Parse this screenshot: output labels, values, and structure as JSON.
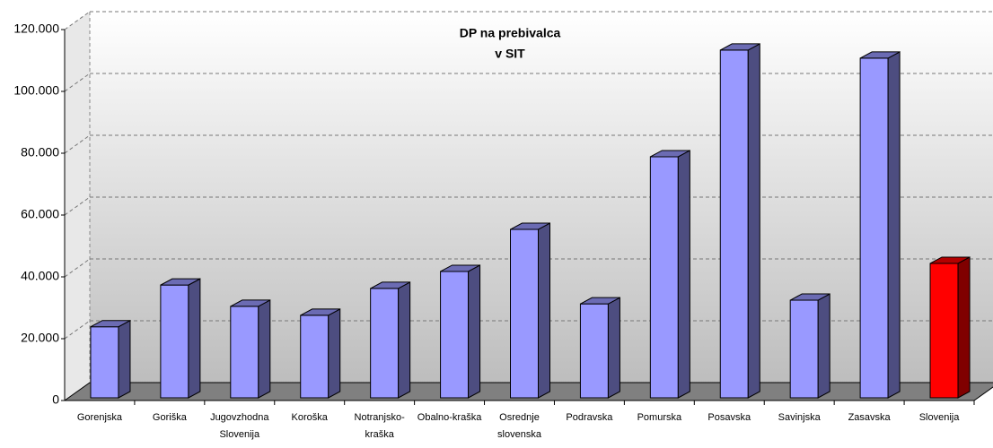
{
  "chart_data": {
    "type": "bar3d",
    "title": "DP na prebivalca",
    "subtitle": "v SIT",
    "categories": [
      "Gorenjska",
      "Goriška",
      "Jugovzhodna Slovenija",
      "Koroška",
      "Notranjsko-kraška",
      "Obalno-kraška",
      "Osrednje slovenska",
      "Podravska",
      "Pomurska",
      "Posavska",
      "Savinjska",
      "Zasavska",
      "Slovenija"
    ],
    "values": [
      24000,
      37500,
      30600,
      27700,
      36400,
      41900,
      55500,
      31400,
      79000,
      113500,
      32600,
      110900,
      44500
    ],
    "colors": [
      "#9999ff",
      "#9999ff",
      "#9999ff",
      "#9999ff",
      "#9999ff",
      "#9999ff",
      "#9999ff",
      "#9999ff",
      "#9999ff",
      "#9999ff",
      "#9999ff",
      "#9999ff",
      "#ff0000"
    ],
    "ylim": [
      0,
      120000
    ],
    "yticks": [
      0,
      {
        "value": 20000,
        "label": "20.000"
      },
      {
        "value": 40000,
        "label": "40.000"
      },
      {
        "value": 60000,
        "label": "60.000"
      },
      {
        "value": 80000,
        "label": "80.000"
      },
      {
        "value": 100000,
        "label": "100.000"
      },
      {
        "value": 120000,
        "label": "120.000"
      }
    ],
    "grid": true
  }
}
